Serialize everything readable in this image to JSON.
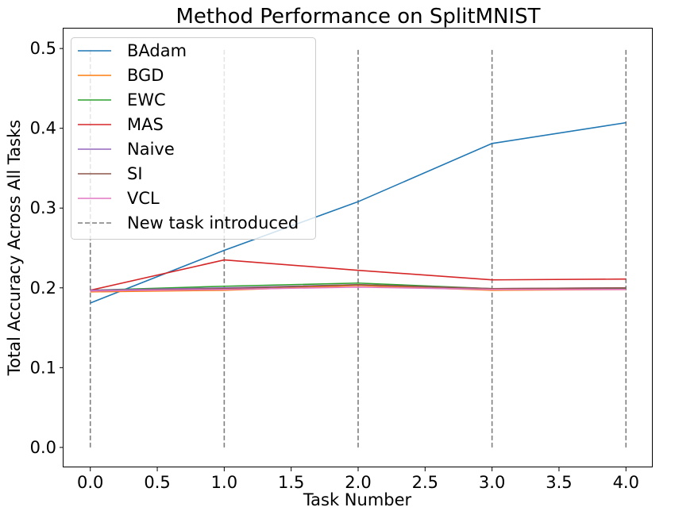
{
  "chart_data": {
    "type": "line",
    "title": "Method Performance on SplitMNIST",
    "xlabel": "Task Number",
    "ylabel": "Total Accuracy Across All Tasks",
    "x": [
      0,
      1,
      2,
      3,
      4
    ],
    "xlim": [
      -0.2,
      4.2
    ],
    "ylim": [
      -0.025,
      0.525
    ],
    "xticks": [
      0.0,
      0.5,
      1.0,
      1.5,
      2.0,
      2.5,
      3.0,
      3.5,
      4.0
    ],
    "xtick_labels": [
      "0.0",
      "0.5",
      "1.0",
      "1.5",
      "2.0",
      "2.5",
      "3.0",
      "3.5",
      "4.0"
    ],
    "yticks": [
      0.0,
      0.1,
      0.2,
      0.3,
      0.4,
      0.5
    ],
    "ytick_labels": [
      "0.0",
      "0.1",
      "0.2",
      "0.3",
      "0.4",
      "0.5"
    ],
    "grid": false,
    "legend_position": "top-left",
    "series": [
      {
        "name": "BAdam",
        "color": "#1f77b4",
        "values": [
          0.181,
          0.247,
          0.308,
          0.381,
          0.407
        ]
      },
      {
        "name": "BGD",
        "color": "#ff7f0e",
        "values": [
          0.195,
          0.197,
          0.203,
          0.197,
          0.198
        ]
      },
      {
        "name": "EWC",
        "color": "#2ca02c",
        "values": [
          0.197,
          0.202,
          0.206,
          0.199,
          0.199
        ]
      },
      {
        "name": "MAS",
        "color": "#d62728",
        "values": [
          0.197,
          0.235,
          0.222,
          0.21,
          0.211
        ]
      },
      {
        "name": "Naive",
        "color": "#9467bd",
        "values": [
          0.197,
          0.2,
          0.204,
          0.199,
          0.2
        ]
      },
      {
        "name": "SI",
        "color": "#8c564b",
        "values": [
          0.196,
          0.199,
          0.204,
          0.199,
          0.2
        ]
      },
      {
        "name": "VCL",
        "color": "#e377c2",
        "values": [
          0.196,
          0.198,
          0.201,
          0.198,
          0.198
        ]
      }
    ],
    "task_markers": {
      "name": "New task introduced",
      "color": "#7f7f7f",
      "x": [
        0,
        1,
        2,
        3,
        4
      ],
      "y_range": [
        0.0,
        0.5
      ]
    }
  }
}
